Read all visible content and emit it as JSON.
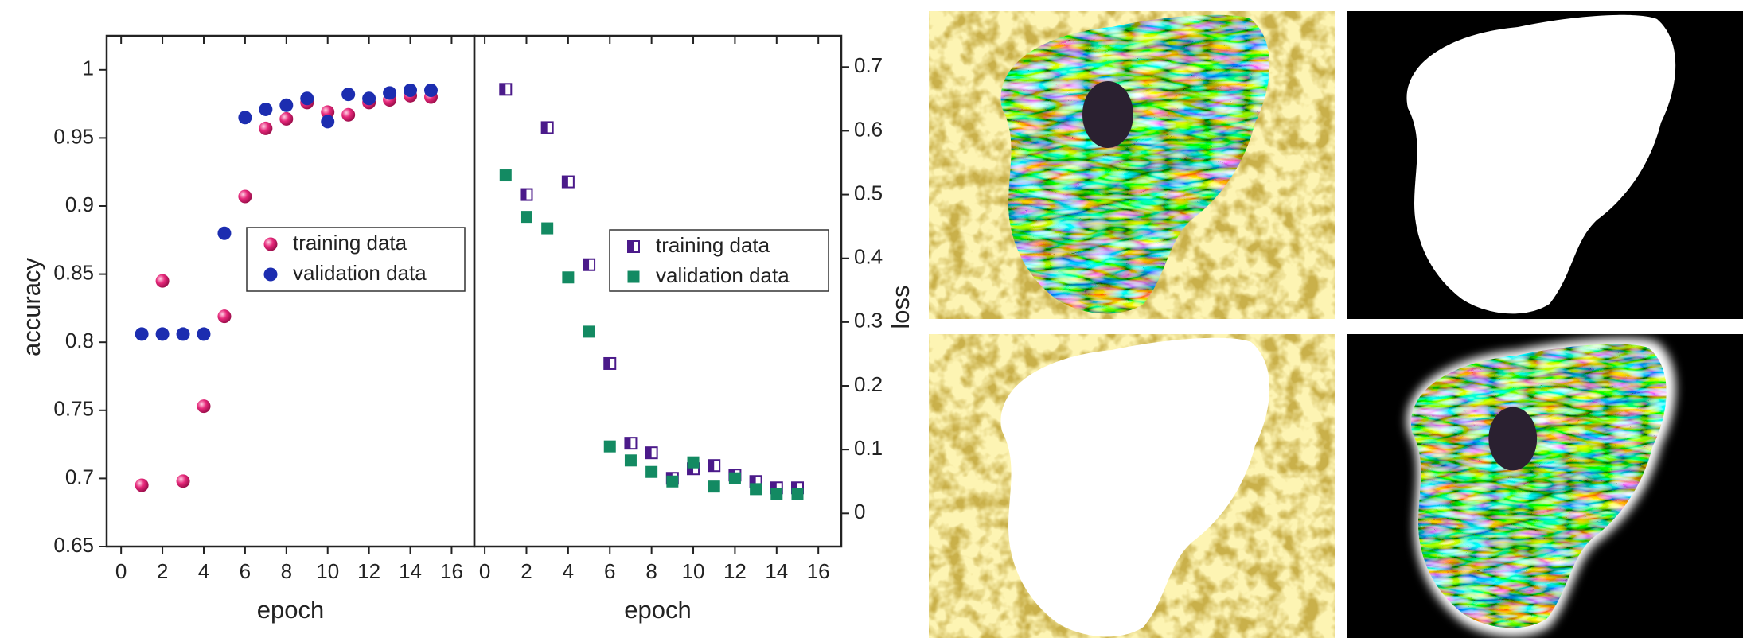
{
  "chart_data": [
    {
      "type": "scatter",
      "xlabel": "epoch",
      "ylabel": "accuracy",
      "x": [
        1,
        2,
        3,
        4,
        5,
        6,
        7,
        8,
        9,
        10,
        11,
        12,
        13,
        14,
        15
      ],
      "xlim": [
        -0.7,
        17.1
      ],
      "xticks": [
        0,
        2,
        4,
        6,
        8,
        10,
        12,
        14,
        16
      ],
      "ylim": [
        0.65,
        1.025
      ],
      "yticks": [
        0.65,
        0.7,
        0.75,
        0.8,
        0.85,
        0.9,
        0.95,
        1
      ],
      "series": [
        {
          "name": "training data",
          "color": "#e6287a",
          "marker": "sphere",
          "values": [
            0.695,
            0.845,
            0.698,
            0.753,
            0.819,
            0.907,
            0.957,
            0.964,
            0.976,
            0.969,
            0.967,
            0.976,
            0.978,
            0.981,
            0.98
          ]
        },
        {
          "name": "validation data",
          "color": "#1c2db0",
          "marker": "circle",
          "values": [
            0.806,
            0.806,
            0.806,
            0.806,
            0.88,
            0.965,
            0.971,
            0.974,
            0.979,
            0.962,
            0.982,
            0.979,
            0.983,
            0.985,
            0.985
          ]
        }
      ]
    },
    {
      "type": "scatter",
      "xlabel": "epoch",
      "ylabel": "loss",
      "x": [
        1,
        2,
        3,
        4,
        5,
        6,
        7,
        8,
        9,
        10,
        11,
        12,
        13,
        14,
        15
      ],
      "xlim": [
        -0.5,
        17.1
      ],
      "xticks": [
        0,
        2,
        4,
        6,
        8,
        10,
        12,
        14,
        16
      ],
      "ylim": [
        -0.052,
        0.749
      ],
      "yticks": [
        0,
        0.1,
        0.2,
        0.3,
        0.4,
        0.5,
        0.6,
        0.7
      ],
      "series": [
        {
          "name": "training data",
          "color": "#4b1a8a",
          "marker": "half-square",
          "values": [
            0.665,
            0.5,
            0.605,
            0.52,
            0.39,
            0.235,
            0.11,
            0.095,
            0.055,
            0.07,
            0.075,
            0.06,
            0.05,
            0.04,
            0.04
          ]
        },
        {
          "name": "validation data",
          "color": "#138a62",
          "marker": "square",
          "values": [
            0.53,
            0.465,
            0.447,
            0.37,
            0.285,
            0.105,
            0.083,
            0.065,
            0.05,
            0.08,
            0.042,
            0.055,
            0.038,
            0.03,
            0.03
          ]
        }
      ]
    }
  ]
}
